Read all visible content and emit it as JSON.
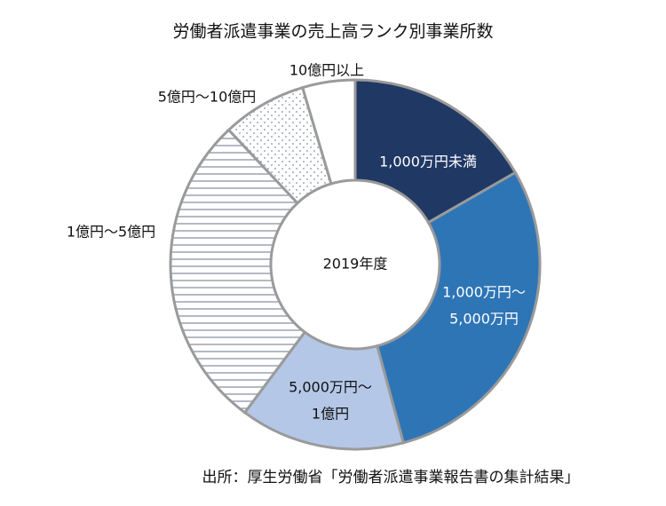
{
  "chart_data": {
    "type": "donut",
    "title": "労働者派遣事業の売上高ランク別事業所数",
    "center_label": "2019年度",
    "source": "出所：厚生労働省「労働者派遣事業報告書の集計結果」",
    "categories": [
      [
        "1,000万円未満"
      ],
      [
        "1,000万円～",
        "5,000万円"
      ],
      [
        "5,000万円～",
        "1億円"
      ],
      [
        "1億円～5億円"
      ],
      [
        "5億円～10億円"
      ],
      [
        "10億円以上"
      ]
    ],
    "values": [
      16.7,
      29.1,
      14.4,
      27.8,
      7.4,
      4.6
    ],
    "colors": [
      "#203864",
      "#2e75b6",
      "#b4c7e7",
      "#ffffff",
      "#ffffff",
      "#ffffff"
    ],
    "patterns": [
      "solid",
      "solid",
      "solid",
      "horizontal-lines",
      "dots",
      "solid"
    ]
  }
}
